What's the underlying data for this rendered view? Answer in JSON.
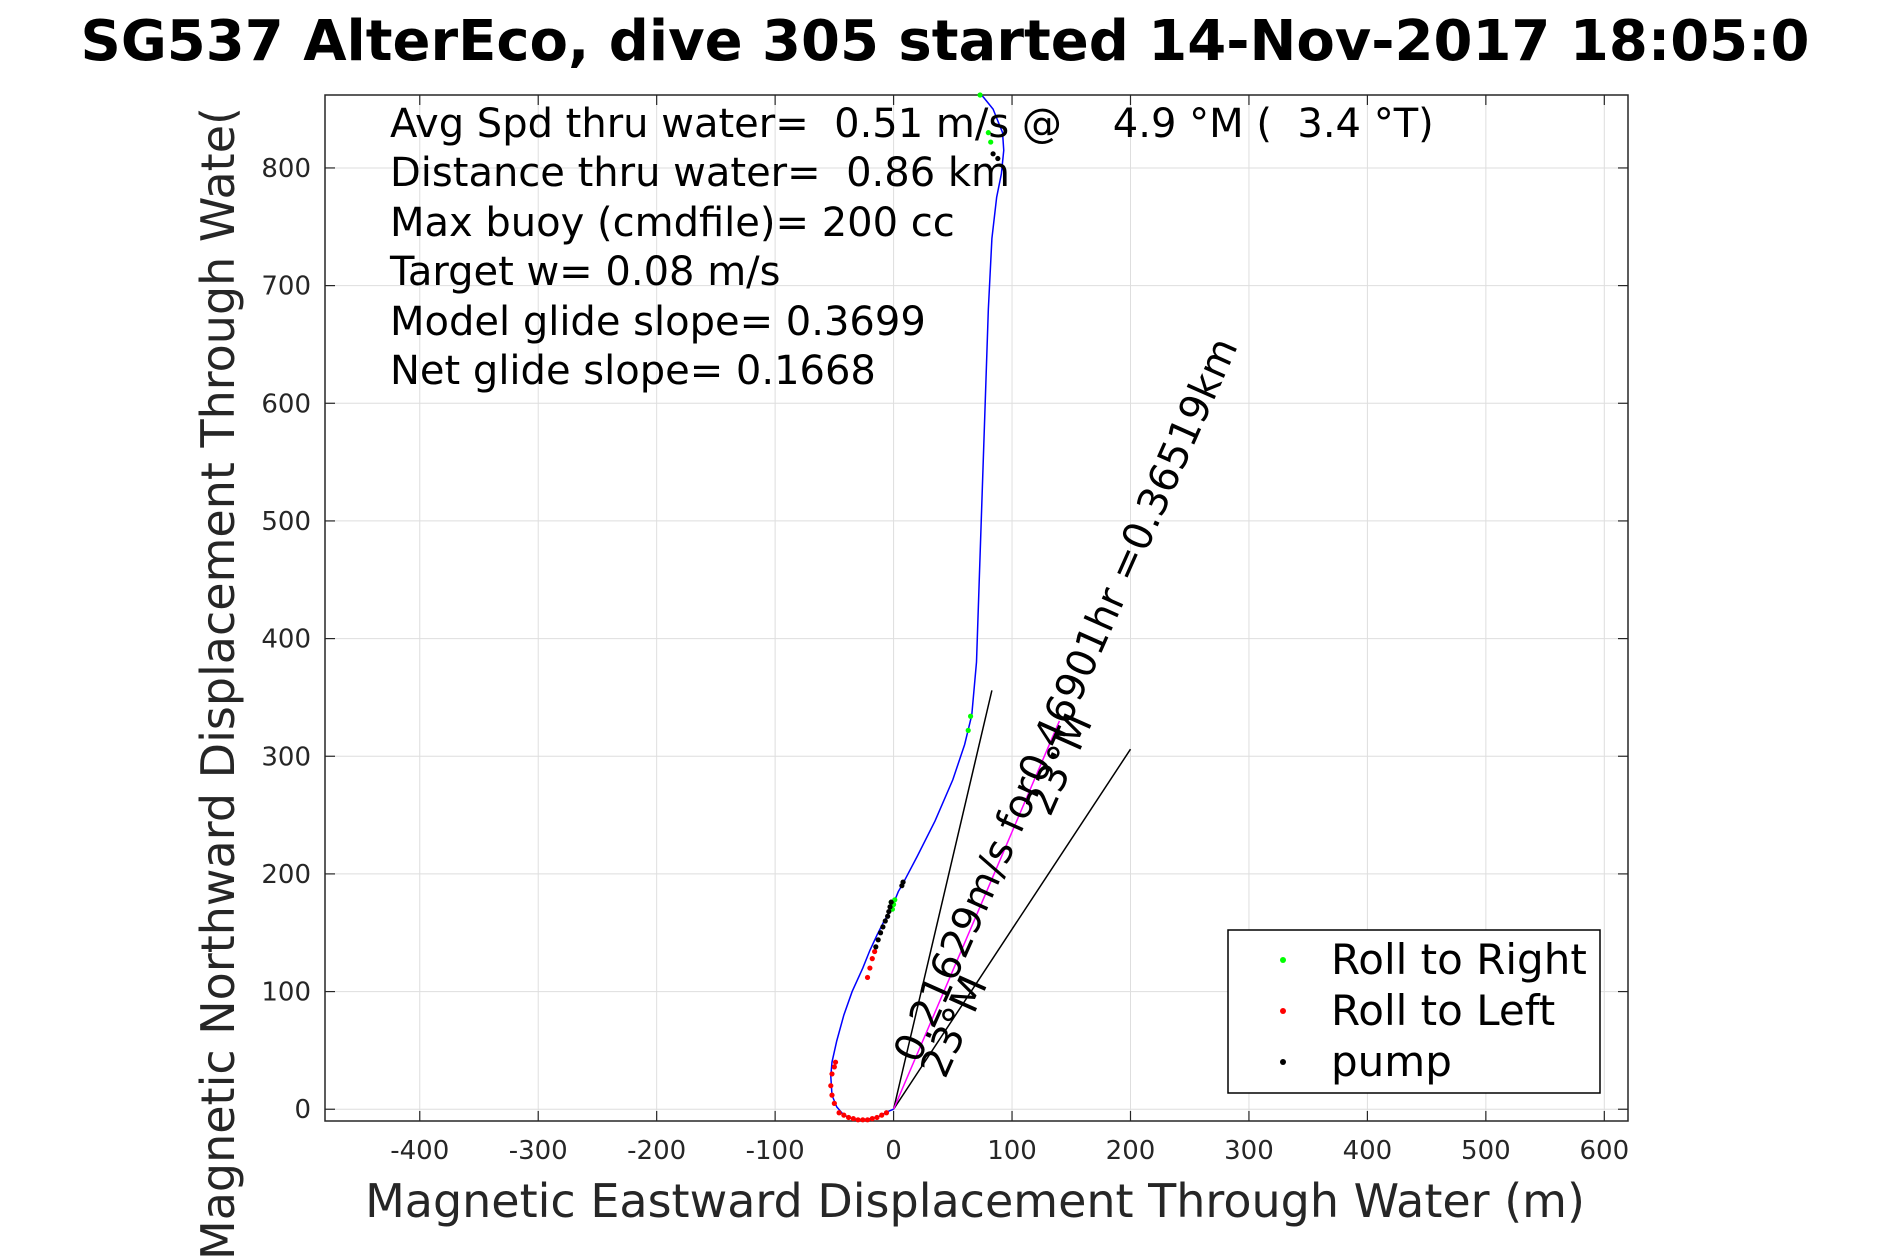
{
  "chart_data": {
    "type": "line",
    "title": "SG537 AlterEco, dive 305 started 14-Nov-2017 18:05:0",
    "xlabel": "Magnetic Eastward Displacement Through Water (m)",
    "ylabel": "Magnetic Northward Displacement Through Wate(",
    "xlim": [
      -480,
      620
    ],
    "ylim": [
      -10,
      862
    ],
    "xticks": [
      -400,
      -300,
      -200,
      -100,
      0,
      100,
      200,
      300,
      400,
      500,
      600
    ],
    "yticks": [
      0,
      100,
      200,
      300,
      400,
      500,
      600,
      700,
      800
    ],
    "grid": true,
    "annotations": [
      "Avg Spd thru water=  0.51 m/s @    4.9 °M (  3.4 °T)",
      "Distance thru water=  0.86 km",
      "Max buoy (cmdfile)= 200 cc",
      "Target w= 0.08 m/s",
      "Model glide slope= 0.3699",
      "Net glide slope= 0.1668"
    ],
    "track": {
      "color": "#0000ff",
      "x": [
        0,
        -5,
        -12,
        -20,
        -28,
        -35,
        -42,
        -48,
        -52,
        -53,
        -52,
        -48,
        -42,
        -35,
        -26,
        -20,
        -14,
        -8,
        -3,
        0,
        2,
        4,
        8,
        20,
        35,
        50,
        60,
        66,
        70,
        72,
        74,
        76,
        78,
        80,
        83,
        87,
        91,
        93,
        92,
        88,
        84,
        80,
        76,
        74
      ],
      "y": [
        0,
        -2,
        -6,
        -8,
        -9,
        -8,
        -5,
        2,
        12,
        28,
        40,
        58,
        80,
        100,
        120,
        135,
        148,
        160,
        168,
        175,
        180,
        185,
        192,
        215,
        245,
        280,
        310,
        335,
        380,
        440,
        500,
        560,
        620,
        680,
        740,
        775,
        795,
        815,
        830,
        840,
        850,
        855,
        860,
        862
      ]
    },
    "series": [
      {
        "name": "Roll to Right",
        "color": "#00ff00",
        "x": [
          -1,
          0,
          1,
          -2,
          63,
          65,
          73,
          80,
          82
        ],
        "y": [
          170,
          174,
          178,
          176,
          322,
          334,
          862,
          830,
          822
        ]
      },
      {
        "name": "Roll to Left",
        "color": "#ff0000",
        "x": [
          -6,
          -10,
          -14,
          -18,
          -22,
          -26,
          -30,
          -34,
          -38,
          -42,
          -46,
          -50,
          -52,
          -53,
          -52,
          -50,
          -49,
          -22,
          -20,
          -18,
          -16
        ],
        "y": [
          -3,
          -5,
          -7,
          -8,
          -9,
          -9,
          -9,
          -8,
          -7,
          -5,
          -3,
          5,
          12,
          20,
          30,
          36,
          40,
          112,
          120,
          128,
          134
        ]
      },
      {
        "name": "pump",
        "color": "#000000",
        "x": [
          -15,
          -13,
          -11,
          -9,
          -7,
          -5,
          -4,
          -3,
          -2,
          7,
          8,
          84,
          88
        ],
        "y": [
          138,
          144,
          150,
          155,
          160,
          164,
          168,
          172,
          176,
          190,
          193,
          812,
          808
        ]
      }
    ],
    "reference_lines": [
      {
        "color": "#000000",
        "x": [
          0,
          83
        ],
        "y": [
          0,
          356
        ]
      },
      {
        "color": "#000000",
        "x": [
          0,
          200
        ],
        "y": [
          0,
          306
        ]
      },
      {
        "color": "#ff00ff",
        "x": [
          0,
          140
        ],
        "y": [
          0,
          330
        ]
      }
    ],
    "rotated_labels": [
      {
        "text": "0.21629m/s for0.46901hr =0.36519km",
        "angle": -66
      },
      {
        "text": "23°M",
        "angle": -66
      },
      {
        "text": "23°M",
        "angle": -66
      }
    ],
    "legend": {
      "placement": "bottom-right",
      "entries": [
        {
          "label": "Roll to Right",
          "color": "#00ff00"
        },
        {
          "label": "Roll to Left",
          "color": "#ff0000"
        },
        {
          "label": "pump",
          "color": "#000000"
        }
      ]
    }
  }
}
